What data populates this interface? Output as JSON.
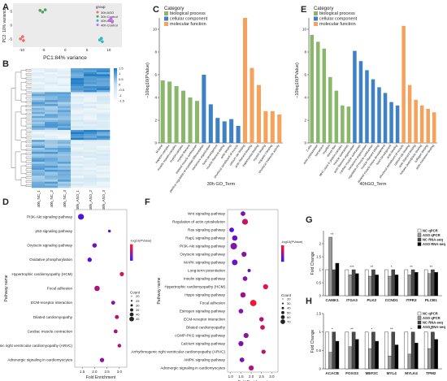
{
  "panel_labels": [
    "A",
    "B",
    "C",
    "D",
    "E",
    "F",
    "G",
    "H"
  ],
  "panelA": {
    "xlabel": "PC1:84% variance",
    "ylabel": "PC2: 10% variance",
    "legend_title": "group",
    "groups": [
      {
        "name": "30h ASO",
        "color": "#f26b6b",
        "points": [
          [
            -9.8,
            -4.2
          ],
          [
            -10.3,
            -5.0
          ],
          [
            -9.6,
            -5.6
          ]
        ]
      },
      {
        "name": "30h Control",
        "color": "#4fa35a",
        "points": [
          [
            -5.8,
            5.4
          ],
          [
            -5.2,
            4.8
          ],
          [
            -4.6,
            5.6
          ]
        ]
      },
      {
        "name": "40h ASO",
        "color": "#2fb8c8",
        "points": [
          [
            7.9,
            -5.4
          ],
          [
            8.5,
            -6.0
          ],
          [
            8.3,
            -4.8
          ]
        ]
      },
      {
        "name": "40h Control",
        "color": "#c46cf0",
        "points": [
          [
            10.2,
            1.8
          ],
          [
            10.8,
            1.2
          ],
          [
            10.5,
            2.4
          ]
        ]
      }
    ],
    "x_ticks": [
      "-10",
      "-5",
      "0",
      "5",
      "10"
    ],
    "y_ticks": [
      "5",
      "0",
      "-5"
    ]
  },
  "panelB": {
    "columns": [
      "40h_NC_1",
      "40h_NC_2",
      "40h_NC_3",
      "40h_ASO_1",
      "40h_ASO_2",
      "40h_ASO_3"
    ],
    "scale_labels": [
      "1.5",
      "1",
      "0.5",
      "0",
      "-0.5",
      "-1",
      "-1.5"
    ]
  },
  "panelC": {
    "legend_title": "Category",
    "xlabel": "30h GO_Term",
    "ylabel": "−10log10(PValue)",
    "categories": [
      "biological process",
      "cellular component",
      "molecular function"
    ],
    "colors": {
      "biological process": "#8ab86a",
      "cellular component": "#3e82c4",
      "molecular function": "#f5a25d"
    },
    "bars": [
      {
        "term": "M band",
        "value": 5.5,
        "cat": "biological process"
      },
      {
        "term": "troponin complex",
        "value": 5.4,
        "cat": "biological process"
      },
      {
        "term": "muscle myosin complex",
        "value": 5.0,
        "cat": "biological process"
      },
      {
        "term": "myosin complex",
        "value": 4.6,
        "cat": "biological process"
      },
      {
        "term": "myosin filament",
        "value": 4.0,
        "cat": "biological process"
      },
      {
        "term": "skeletal muscle contraction",
        "value": 3.7,
        "cat": "biological process"
      },
      {
        "term": "positive regulation of myoblast differentiation",
        "value": 6.0,
        "cat": "cellular component"
      },
      {
        "term": "sarcomere organization",
        "value": 3.4,
        "cat": "cellular component"
      },
      {
        "term": "heart development",
        "value": 2.2,
        "cat": "cellular component"
      },
      {
        "term": "muscle filament sliding",
        "value": 1.9,
        "cat": "cellular component"
      },
      {
        "term": "actin binding",
        "value": 2.1,
        "cat": "cellular component"
      },
      {
        "term": "structural constituent of muscle",
        "value": 1.5,
        "cat": "cellular component"
      },
      {
        "term": "calcium ion binding",
        "value": 11.0,
        "cat": "molecular function"
      },
      {
        "term": "actin filament binding",
        "value": 6.6,
        "cat": "molecular function"
      },
      {
        "term": "tropomyosin binding",
        "value": 5.1,
        "cat": "molecular function"
      },
      {
        "term": "myosin binding",
        "value": 2.8,
        "cat": "molecular function"
      },
      {
        "term": "troponin I binding",
        "value": 2.8,
        "cat": "molecular function"
      },
      {
        "term": "structural molecule activity",
        "value": 2.5,
        "cat": "molecular function"
      }
    ],
    "y_ticks": [
      "0",
      "2",
      "4",
      "6",
      "8",
      "10"
    ]
  },
  "panelE": {
    "legend_title": "Category",
    "xlabel": "40hGO_Term",
    "ylabel": "−10log10(PValue)",
    "categories": [
      "biological process",
      "cellular component",
      "molecular function"
    ],
    "colors": {
      "biological process": "#8ab86a",
      "cellular component": "#3e82c4",
      "molecular function": "#f5a25d"
    },
    "bars": [
      {
        "term": "Z disc",
        "value": 9.5,
        "cat": "biological process"
      },
      {
        "term": "actin cytoskeleton",
        "value": 8.9,
        "cat": "biological process"
      },
      {
        "term": "sarcomere",
        "value": 8.3,
        "cat": "biological process"
      },
      {
        "term": "myofibril",
        "value": 5.8,
        "cat": "biological process"
      },
      {
        "term": "stress fiber",
        "value": 4.6,
        "cat": "biological process"
      },
      {
        "term": "MHC class II protein complex",
        "value": 3.3,
        "cat": "biological process"
      },
      {
        "term": "muscle contraction",
        "value": 3.2,
        "cat": "biological process"
      },
      {
        "term": "actin filament organization",
        "value": 8.1,
        "cat": "cellular component"
      },
      {
        "term": "cardiac muscle contraction",
        "value": 7.2,
        "cat": "cellular component"
      },
      {
        "term": "sarcomere organization",
        "value": 6.4,
        "cat": "cellular component"
      },
      {
        "term": "regulation of muscle contraction",
        "value": 5.6,
        "cat": "cellular component"
      },
      {
        "term": "muscle filament sliding",
        "value": 4.9,
        "cat": "cellular component"
      },
      {
        "term": "skeletal muscle tissue development",
        "value": 4.4,
        "cat": "cellular component"
      },
      {
        "term": "heart development",
        "value": 3.6,
        "cat": "cellular component"
      },
      {
        "term": "actin binding",
        "value": 3.3,
        "cat": "cellular component"
      },
      {
        "term": "structural constituent of muscle",
        "value": 10.3,
        "cat": "molecular function"
      },
      {
        "term": "calcium ion binding",
        "value": 5.1,
        "cat": "molecular function"
      },
      {
        "term": "actin filament binding",
        "value": 3.8,
        "cat": "molecular function"
      },
      {
        "term": "histone deacetylase binding",
        "value": 3.3,
        "cat": "molecular function"
      },
      {
        "term": "collagen binding",
        "value": 3.0,
        "cat": "molecular function"
      },
      {
        "term": "actin monomer binding",
        "value": 2.7,
        "cat": "molecular function"
      }
    ],
    "y_ticks": [
      "0",
      "2",
      "4",
      "6",
      "8",
      "10"
    ]
  },
  "panelD": {
    "ylabel": "Pathway name",
    "xlabel": "Fold Enrichment",
    "size_title": "Count",
    "color_title": "-log10(PValue)",
    "x_ticks": [
      "1.5",
      "2.0",
      "2.5",
      "3.0"
    ],
    "xlim": [
      1.2,
      3.3
    ],
    "size_labels": [
      "20",
      "25",
      "30",
      "35",
      "40",
      "45"
    ],
    "pathways": [
      {
        "name": "PI3K-Akt signaling pathway",
        "fold": 1.45,
        "count": 45,
        "logp": 1.4
      },
      {
        "name": "p53 signaling pathway",
        "fold": 2.6,
        "count": 5,
        "logp": 1.8
      },
      {
        "name": "Oxytocin signaling pathway",
        "fold": 2.0,
        "count": 22,
        "logp": 2.4
      },
      {
        "name": "Oxidative phosphorylation",
        "fold": 1.8,
        "count": 20,
        "logp": 1.5
      },
      {
        "name": "Hypertrophic cardiomyopathy (HCM)",
        "fold": 3.1,
        "count": 18,
        "logp": 5.0
      },
      {
        "name": "Focal adhesion",
        "fold": 2.1,
        "count": 35,
        "logp": 3.8
      },
      {
        "name": "ECM-receptor interaction",
        "fold": 2.75,
        "count": 15,
        "logp": 3.0
      },
      {
        "name": "Dilated cardiomyopathy",
        "fold": 2.9,
        "count": 16,
        "logp": 4.0
      },
      {
        "name": "Cardiac muscle contraction",
        "fold": 2.85,
        "count": 14,
        "logp": 3.6
      },
      {
        "name": "Arrhythmogenic right ventricular cardiomyopathy (ARVC)",
        "fold": 3.0,
        "count": 12,
        "logp": 3.8
      },
      {
        "name": "Adrenergic signaling in cardiomyocytes",
        "fold": 2.3,
        "count": 20,
        "logp": 3.2
      }
    ]
  },
  "panelF": {
    "ylabel": "Pathway name",
    "xlabel": "Fold Enrichment",
    "size_title": "Count",
    "color_title": "-log10(PValue)",
    "x_ticks": [
      "1.0",
      "1.5",
      "2.0",
      "2.5",
      "3.0"
    ],
    "xlim": [
      0.85,
      3.3
    ],
    "size_labels": [
      "20",
      "30",
      "40",
      "50",
      "60",
      "70"
    ],
    "pathways": [
      {
        "name": "Wnt signaling pathway",
        "fold": 1.6,
        "count": 25,
        "logp": 2.6
      },
      {
        "name": "Regulation of actin cytoskeleton",
        "fold": 1.7,
        "count": 45,
        "logp": 4.6
      },
      {
        "name": "Ras signaling pathway",
        "fold": 1.05,
        "count": 25,
        "logp": 1.6
      },
      {
        "name": "Rap1 signaling pathway",
        "fold": 1.2,
        "count": 35,
        "logp": 2.0
      },
      {
        "name": "PI3K-Akt signaling pathway",
        "fold": 1.15,
        "count": 60,
        "logp": 2.8
      },
      {
        "name": "Oxytocin signaling pathway",
        "fold": 1.65,
        "count": 30,
        "logp": 3.0
      },
      {
        "name": "MAPK signaling pathway",
        "fold": 1.2,
        "count": 40,
        "logp": 2.2
      },
      {
        "name": "Long-term potentiation",
        "fold": 1.9,
        "count": 8,
        "logp": 1.8
      },
      {
        "name": "Insulin signaling pathway",
        "fold": 1.7,
        "count": 25,
        "logp": 3.0
      },
      {
        "name": "Hypertrophic cardiomyopathy (HCM)",
        "fold": 2.7,
        "count": 30,
        "logp": 5.2
      },
      {
        "name": "Hippo signaling pathway",
        "fold": 1.6,
        "count": 35,
        "logp": 3.4
      },
      {
        "name": "Focal adhesion",
        "fold": 2.1,
        "count": 55,
        "logp": 5.6
      },
      {
        "name": "Estrogen signaling pathway",
        "fold": 1.5,
        "count": 25,
        "logp": 2.8
      },
      {
        "name": "ECM-receptor interaction",
        "fold": 2.5,
        "count": 22,
        "logp": 4.0
      },
      {
        "name": "Dilated cardiomyopathy",
        "fold": 2.55,
        "count": 25,
        "logp": 4.6
      },
      {
        "name": "cGMP-PKG signaling pathway",
        "fold": 1.75,
        "count": 30,
        "logp": 3.2
      },
      {
        "name": "Calcium signaling pathway",
        "fold": 1.5,
        "count": 30,
        "logp": 2.6
      },
      {
        "name": "Arrhythmogenic right ventricular cardiomyopathy (ARVC)",
        "fold": 2.6,
        "count": 20,
        "logp": 4.2
      },
      {
        "name": "AMPK signaling pathway",
        "fold": 1.55,
        "count": 25,
        "logp": 2.6
      },
      {
        "name": "Adrenergic signaling in cardiomyocytes",
        "fold": 2.0,
        "count": 30,
        "logp": 4.0
      }
    ]
  },
  "panelG": {
    "ylabel": "Fold Change",
    "y_ticks": [
      "0",
      "0.5",
      "1",
      "1.5",
      "2"
    ],
    "ylim": [
      0,
      2.5
    ],
    "legend": [
      "NC qPCR",
      "ASO qPCR",
      "NC RNA-seq",
      "ASO RNA-seq"
    ],
    "genes": [
      "CAMK1",
      "ITGA3",
      "PLK2",
      "CCND1",
      "ITPR3",
      "PLCB1"
    ],
    "values": [
      [
        1.0,
        2.25,
        1.0,
        1.25
      ],
      [
        1.0,
        0.8,
        1.0,
        0.85
      ],
      [
        1.0,
        0.75,
        1.0,
        0.8
      ],
      [
        1.0,
        0.75,
        1.0,
        0.8
      ],
      [
        1.0,
        0.8,
        1.0,
        0.9
      ],
      [
        1.0,
        0.85,
        1.0,
        0.9
      ]
    ],
    "stars": [
      "**",
      "***",
      "**",
      "*",
      "**",
      "**"
    ]
  },
  "panelH": {
    "ylabel": "Fold Change",
    "y_ticks": [
      "0",
      "0.5",
      "1",
      "1.5"
    ],
    "ylim": [
      0,
      1.5
    ],
    "legend": [
      "NC qPCR",
      "ASO qPCR",
      "NC RNA-seq",
      "ASO RNA-seq"
    ],
    "genes": [
      "ACACB",
      "FOXO3",
      "MEF2C",
      "MYL4",
      "MYLK4",
      "TPM2"
    ],
    "values": [
      [
        1.0,
        0.45,
        1.0,
        0.75
      ],
      [
        1.0,
        0.6,
        1.0,
        0.8
      ],
      [
        1.0,
        0.55,
        1.0,
        0.75
      ],
      [
        1.0,
        0.35,
        1.0,
        0.65
      ],
      [
        1.0,
        0.4,
        1.0,
        0.7
      ],
      [
        1.0,
        0.55,
        1.0,
        0.8
      ]
    ],
    "stars": [
      "*",
      "**",
      "*",
      "**",
      "*",
      "**"
    ]
  }
}
